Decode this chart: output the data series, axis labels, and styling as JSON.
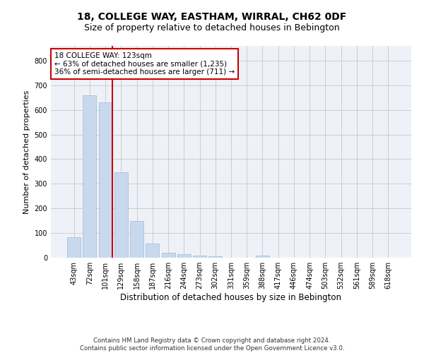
{
  "title": "18, COLLEGE WAY, EASTHAM, WIRRAL, CH62 0DF",
  "subtitle": "Size of property relative to detached houses in Bebington",
  "xlabel": "Distribution of detached houses by size in Bebington",
  "ylabel": "Number of detached properties",
  "bar_labels": [
    "43sqm",
    "72sqm",
    "101sqm",
    "129sqm",
    "158sqm",
    "187sqm",
    "216sqm",
    "244sqm",
    "273sqm",
    "302sqm",
    "331sqm",
    "359sqm",
    "388sqm",
    "417sqm",
    "446sqm",
    "474sqm",
    "503sqm",
    "532sqm",
    "561sqm",
    "589sqm",
    "618sqm"
  ],
  "bar_values": [
    83,
    660,
    630,
    347,
    148,
    58,
    20,
    15,
    10,
    7,
    0,
    0,
    8,
    0,
    0,
    0,
    0,
    0,
    0,
    0,
    0
  ],
  "bar_color": "#c9d9ed",
  "bar_edge_color": "#a0b8d8",
  "vline_color": "#cc0000",
  "annotation_text": "18 COLLEGE WAY: 123sqm\n← 63% of detached houses are smaller (1,235)\n36% of semi-detached houses are larger (711) →",
  "annotation_box_color": "#ffffff",
  "annotation_box_edge_color": "#cc0000",
  "annotation_fontsize": 7.5,
  "ylim": [
    0,
    860
  ],
  "yticks": [
    0,
    100,
    200,
    300,
    400,
    500,
    600,
    700,
    800
  ],
  "grid_color": "#cccccc",
  "background_color": "#eef2f8",
  "footer_line1": "Contains HM Land Registry data © Crown copyright and database right 2024.",
  "footer_line2": "Contains public sector information licensed under the Open Government Licence v3.0.",
  "title_fontsize": 10,
  "subtitle_fontsize": 9,
  "xlabel_fontsize": 8.5,
  "ylabel_fontsize": 8,
  "tick_label_fontsize": 7
}
